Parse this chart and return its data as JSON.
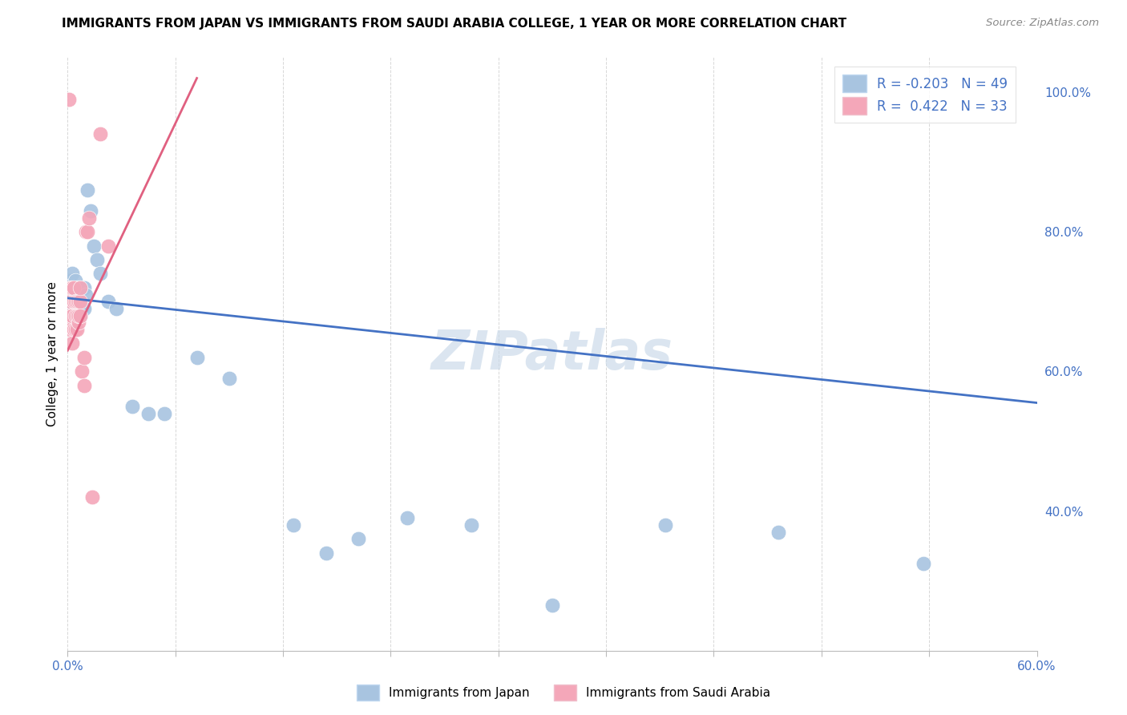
{
  "title": "IMMIGRANTS FROM JAPAN VS IMMIGRANTS FROM SAUDI ARABIA COLLEGE, 1 YEAR OR MORE CORRELATION CHART",
  "source": "Source: ZipAtlas.com",
  "ylabel": "College, 1 year or more",
  "right_yticks": [
    "40.0%",
    "60.0%",
    "80.0%",
    "100.0%"
  ],
  "right_ytick_vals": [
    0.4,
    0.6,
    0.8,
    1.0
  ],
  "legend_blue_r": "R = -0.203",
  "legend_blue_n": "N = 49",
  "legend_pink_r": "R =  0.422",
  "legend_pink_n": "N = 33",
  "blue_color": "#a8c4e0",
  "pink_color": "#f4a7b9",
  "blue_line_color": "#4472c4",
  "pink_line_color": "#e06080",
  "watermark": "ZIPatlas",
  "watermark_color": "#c8d8e8",
  "xmin": 0.0,
  "xmax": 0.6,
  "ymin": 0.2,
  "ymax": 1.05,
  "japan_x": [
    0.001,
    0.001,
    0.002,
    0.002,
    0.003,
    0.003,
    0.003,
    0.004,
    0.004,
    0.004,
    0.005,
    0.005,
    0.005,
    0.006,
    0.006,
    0.006,
    0.007,
    0.007,
    0.007,
    0.007,
    0.008,
    0.008,
    0.008,
    0.009,
    0.009,
    0.01,
    0.01,
    0.011,
    0.012,
    0.014,
    0.016,
    0.018,
    0.02,
    0.025,
    0.03,
    0.04,
    0.05,
    0.06,
    0.08,
    0.1,
    0.14,
    0.16,
    0.18,
    0.21,
    0.25,
    0.3,
    0.37,
    0.44,
    0.53
  ],
  "japan_y": [
    0.72,
    0.7,
    0.73,
    0.69,
    0.74,
    0.71,
    0.68,
    0.72,
    0.7,
    0.68,
    0.73,
    0.7,
    0.67,
    0.71,
    0.69,
    0.72,
    0.68,
    0.7,
    0.72,
    0.69,
    0.7,
    0.68,
    0.72,
    0.7,
    0.69,
    0.72,
    0.69,
    0.71,
    0.86,
    0.83,
    0.78,
    0.76,
    0.74,
    0.7,
    0.69,
    0.55,
    0.54,
    0.54,
    0.62,
    0.59,
    0.38,
    0.34,
    0.36,
    0.39,
    0.38,
    0.265,
    0.38,
    0.37,
    0.325
  ],
  "saudi_x": [
    0.001,
    0.001,
    0.001,
    0.002,
    0.002,
    0.002,
    0.003,
    0.003,
    0.003,
    0.004,
    0.004,
    0.004,
    0.005,
    0.005,
    0.005,
    0.006,
    0.006,
    0.006,
    0.007,
    0.007,
    0.007,
    0.008,
    0.008,
    0.008,
    0.009,
    0.01,
    0.01,
    0.011,
    0.012,
    0.013,
    0.015,
    0.02,
    0.025
  ],
  "saudi_y": [
    0.99,
    0.71,
    0.68,
    0.7,
    0.66,
    0.72,
    0.68,
    0.64,
    0.72,
    0.66,
    0.7,
    0.72,
    0.66,
    0.7,
    0.68,
    0.68,
    0.7,
    0.66,
    0.67,
    0.7,
    0.68,
    0.7,
    0.72,
    0.68,
    0.6,
    0.58,
    0.62,
    0.8,
    0.8,
    0.82,
    0.42,
    0.94,
    0.78
  ],
  "blue_line_x0": 0.0,
  "blue_line_x1": 0.6,
  "blue_line_y0": 0.705,
  "blue_line_y1": 0.555,
  "pink_line_x0": 0.0,
  "pink_line_x1": 0.08,
  "pink_line_y0": 0.63,
  "pink_line_y1": 1.02
}
